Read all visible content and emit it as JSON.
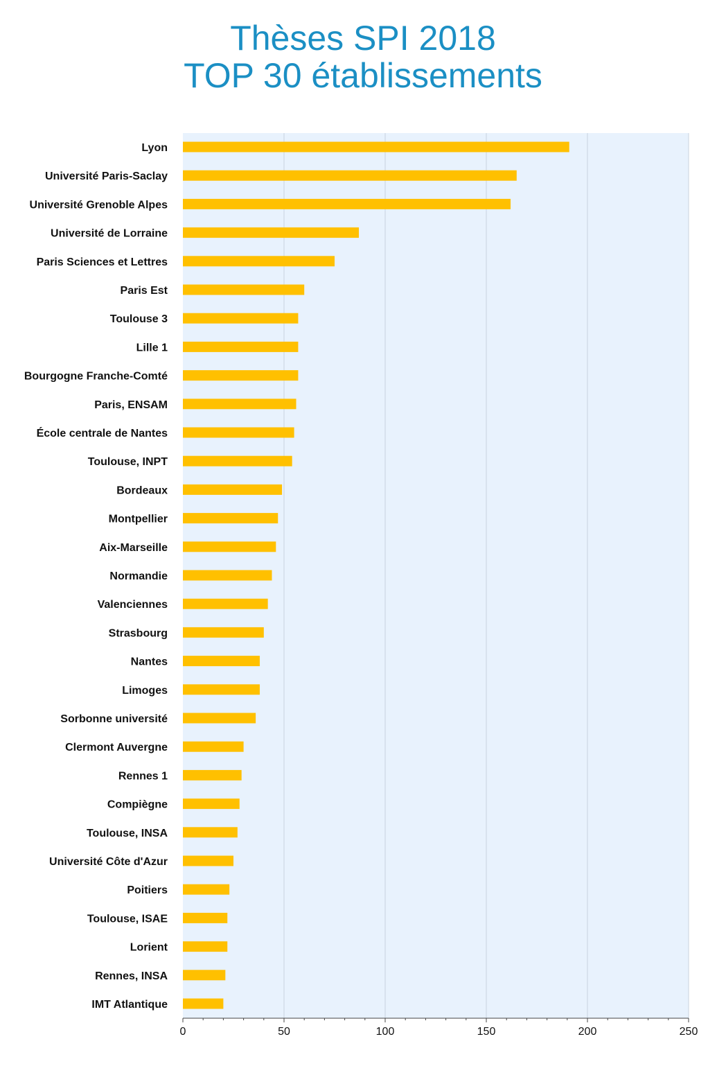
{
  "chart_data": {
    "type": "bar",
    "orientation": "horizontal",
    "title_lines": [
      "Thèses SPI 2018",
      "TOP 30 établissements"
    ],
    "categories": [
      "Lyon",
      "Université Paris-Saclay",
      "Université Grenoble Alpes",
      "Université de Lorraine",
      "Paris Sciences et Lettres",
      "Paris Est",
      "Toulouse 3",
      "Lille 1",
      "Bourgogne Franche-Comté",
      "Paris, ENSAM",
      "École centrale de Nantes",
      "Toulouse, INPT",
      "Bordeaux",
      "Montpellier",
      "Aix-Marseille",
      "Normandie",
      "Valenciennes",
      "Strasbourg",
      "Nantes",
      "Limoges",
      "Sorbonne université",
      "Clermont Auvergne",
      "Rennes 1",
      "Compiègne",
      "Toulouse, INSA",
      "Université Côte d'Azur",
      "Poitiers",
      "Toulouse, ISAE",
      "Lorient",
      "Rennes, INSA",
      "IMT Atlantique"
    ],
    "values": [
      191,
      165,
      162,
      87,
      75,
      60,
      57,
      57,
      57,
      56,
      55,
      54,
      49,
      47,
      46,
      44,
      42,
      40,
      38,
      38,
      36,
      30,
      29,
      28,
      27,
      25,
      23,
      22,
      22,
      21,
      20
    ],
    "xlim": [
      0,
      250
    ],
    "xticks": [
      0,
      50,
      100,
      150,
      200,
      250
    ],
    "grid": true,
    "legend": "none",
    "colors": {
      "bar": "#ffc000",
      "plot_background": "#e8f2fd",
      "gridline": "#c9d3de",
      "title": "#1b8fc4"
    }
  }
}
